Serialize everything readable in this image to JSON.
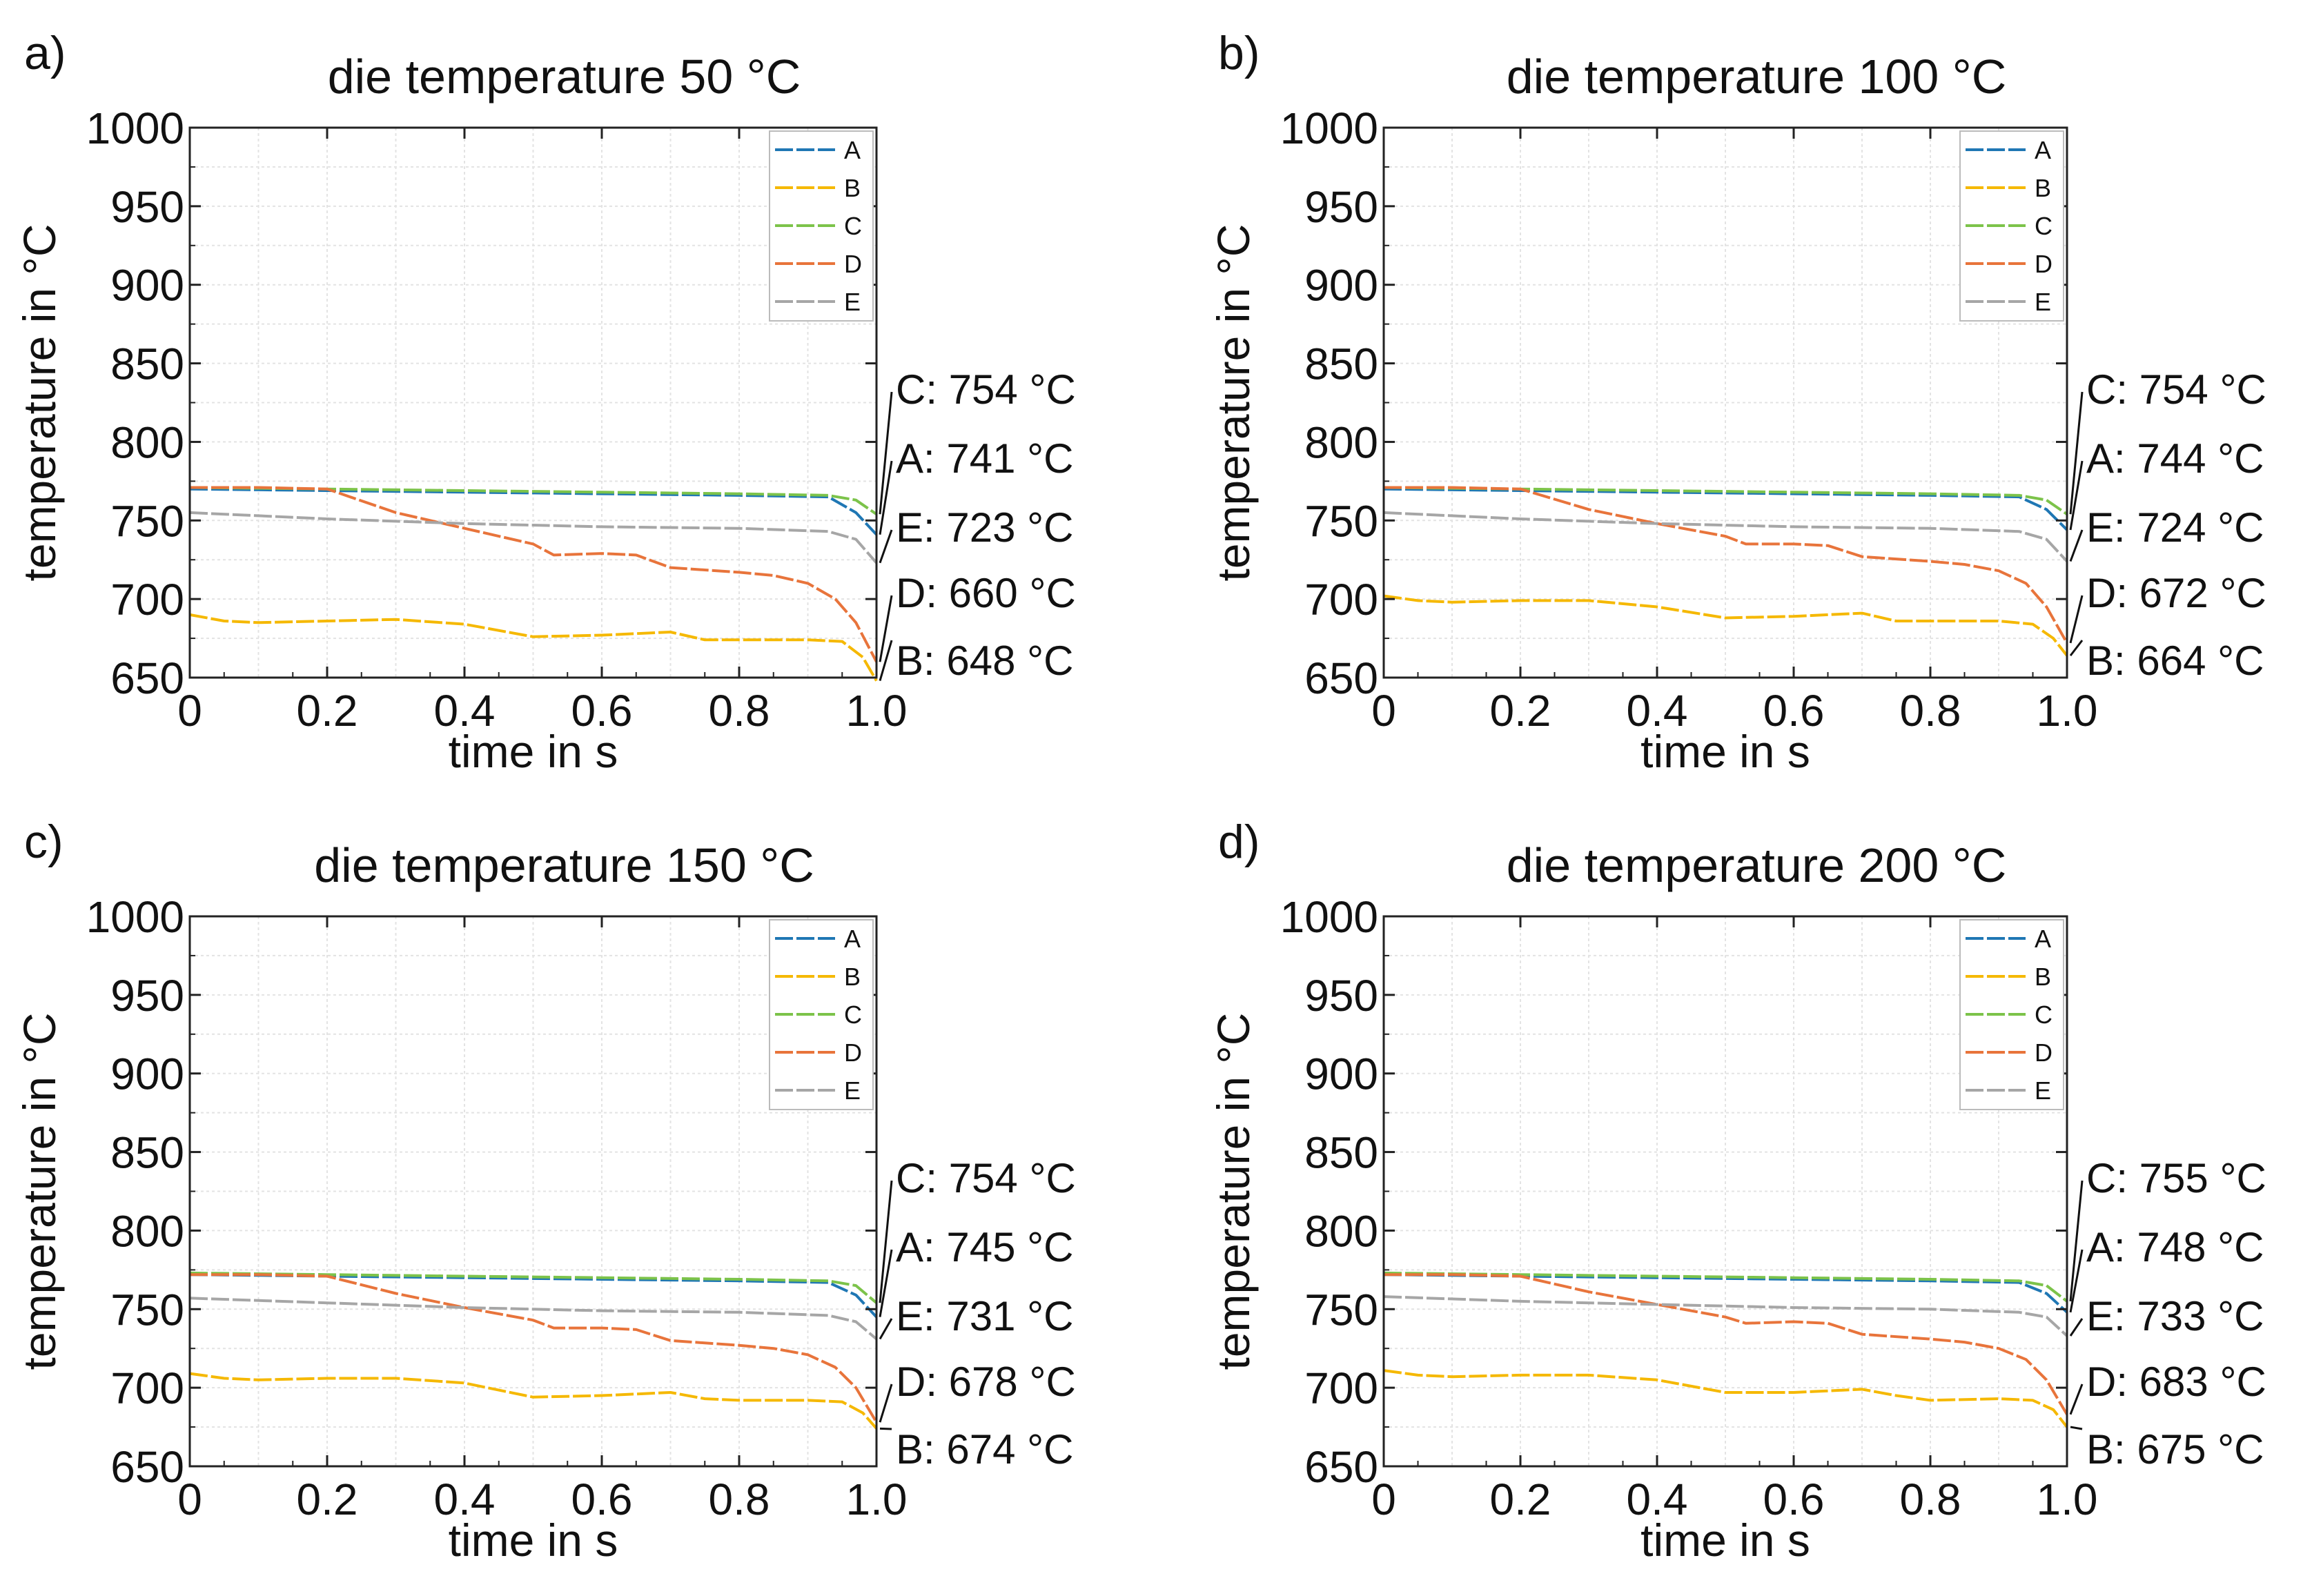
{
  "chart_data": [
    {
      "type": "line",
      "panel_label": "a)",
      "title": "die temperature 50 °C",
      "xlabel": "time in s",
      "ylabel": "temperature in °C",
      "xlim": [
        0,
        1.0
      ],
      "ylim": [
        650,
        1000
      ],
      "xticks": [
        0,
        0.2,
        0.4,
        0.6,
        0.8,
        1.0
      ],
      "xtick_labels": [
        "0",
        "0.2",
        "0.4",
        "0.6",
        "0.8",
        "1.0"
      ],
      "yticks": [
        650,
        700,
        750,
        800,
        850,
        900,
        950,
        1000
      ],
      "ytick_labels": [
        "650",
        "700",
        "750",
        "800",
        "850",
        "900",
        "950",
        "1000"
      ],
      "grid": true,
      "legend_position": "top-right",
      "series": [
        {
          "name": "A",
          "color": "#1f77b4",
          "x": [
            0,
            0.2,
            0.4,
            0.6,
            0.8,
            0.93,
            0.97,
            1.0
          ],
          "y": [
            770,
            769,
            768,
            767,
            766,
            765,
            755,
            741
          ]
        },
        {
          "name": "B",
          "color": "#f5b800",
          "x": [
            0,
            0.05,
            0.1,
            0.2,
            0.3,
            0.4,
            0.5,
            0.6,
            0.7,
            0.75,
            0.8,
            0.9,
            0.95,
            0.98,
            1.0
          ],
          "y": [
            690,
            686,
            685,
            686,
            687,
            684,
            676,
            677,
            679,
            674,
            674,
            674,
            673,
            663,
            648
          ]
        },
        {
          "name": "C",
          "color": "#7cc34a",
          "x": [
            0,
            0.2,
            0.4,
            0.6,
            0.8,
            0.93,
            0.97,
            1.0
          ],
          "y": [
            771,
            770,
            769,
            768,
            767,
            766,
            763,
            754
          ]
        },
        {
          "name": "D",
          "color": "#e8743b",
          "x": [
            0,
            0.1,
            0.2,
            0.3,
            0.4,
            0.5,
            0.53,
            0.6,
            0.65,
            0.7,
            0.8,
            0.85,
            0.9,
            0.94,
            0.97,
            1.0
          ],
          "y": [
            771,
            771,
            770,
            755,
            745,
            735,
            728,
            729,
            728,
            720,
            717,
            715,
            710,
            700,
            685,
            660
          ]
        },
        {
          "name": "E",
          "color": "#a6a6a6",
          "x": [
            0,
            0.2,
            0.4,
            0.6,
            0.8,
            0.93,
            0.97,
            1.0
          ],
          "y": [
            755,
            751,
            748,
            746,
            745,
            743,
            738,
            723
          ]
        }
      ],
      "annotations": [
        {
          "text": "C: 754 °C",
          "series": "C",
          "value": 754
        },
        {
          "text": "A: 741 °C",
          "series": "A",
          "value": 741
        },
        {
          "text": "E: 723 °C",
          "series": "E",
          "value": 723
        },
        {
          "text": "D: 660 °C",
          "series": "D",
          "value": 660
        },
        {
          "text": "B: 648 °C",
          "series": "B",
          "value": 648
        }
      ]
    },
    {
      "type": "line",
      "panel_label": "b)",
      "title": "die temperature 100 °C",
      "xlabel": "time in s",
      "ylabel": "temperature in °C",
      "xlim": [
        0,
        1.0
      ],
      "ylim": [
        650,
        1000
      ],
      "xticks": [
        0,
        0.2,
        0.4,
        0.6,
        0.8,
        1.0
      ],
      "xtick_labels": [
        "0",
        "0.2",
        "0.4",
        "0.6",
        "0.8",
        "1.0"
      ],
      "yticks": [
        650,
        700,
        750,
        800,
        850,
        900,
        950,
        1000
      ],
      "ytick_labels": [
        "650",
        "700",
        "750",
        "800",
        "850",
        "900",
        "950",
        "1000"
      ],
      "grid": true,
      "legend_position": "top-right",
      "series": [
        {
          "name": "A",
          "color": "#1f77b4",
          "x": [
            0,
            0.2,
            0.4,
            0.6,
            0.8,
            0.93,
            0.97,
            1.0
          ],
          "y": [
            770,
            769,
            768,
            767,
            766,
            765,
            757,
            744
          ]
        },
        {
          "name": "B",
          "color": "#f5b800",
          "x": [
            0,
            0.05,
            0.1,
            0.2,
            0.3,
            0.4,
            0.5,
            0.6,
            0.7,
            0.75,
            0.8,
            0.9,
            0.95,
            0.98,
            1.0
          ],
          "y": [
            702,
            699,
            698,
            699,
            699,
            695,
            688,
            689,
            691,
            686,
            686,
            686,
            684,
            675,
            664
          ]
        },
        {
          "name": "C",
          "color": "#7cc34a",
          "x": [
            0,
            0.2,
            0.4,
            0.6,
            0.8,
            0.93,
            0.97,
            1.0
          ],
          "y": [
            771,
            770,
            769,
            768,
            767,
            766,
            763,
            754
          ]
        },
        {
          "name": "D",
          "color": "#e8743b",
          "x": [
            0,
            0.1,
            0.2,
            0.3,
            0.4,
            0.5,
            0.53,
            0.6,
            0.65,
            0.7,
            0.8,
            0.85,
            0.9,
            0.94,
            0.97,
            1.0
          ],
          "y": [
            771,
            771,
            770,
            757,
            748,
            740,
            735,
            735,
            734,
            727,
            724,
            722,
            718,
            710,
            695,
            672
          ]
        },
        {
          "name": "E",
          "color": "#a6a6a6",
          "x": [
            0,
            0.2,
            0.4,
            0.6,
            0.8,
            0.93,
            0.97,
            1.0
          ],
          "y": [
            755,
            751,
            748,
            746,
            745,
            743,
            738,
            724
          ]
        }
      ],
      "annotations": [
        {
          "text": "C: 754 °C",
          "series": "C",
          "value": 754
        },
        {
          "text": "A: 744 °C",
          "series": "A",
          "value": 744
        },
        {
          "text": "E: 724 °C",
          "series": "E",
          "value": 724
        },
        {
          "text": "D: 672 °C",
          "series": "D",
          "value": 672
        },
        {
          "text": "B: 664 °C",
          "series": "B",
          "value": 664
        }
      ]
    },
    {
      "type": "line",
      "panel_label": "c)",
      "title": "die temperature 150 °C",
      "xlabel": "time in s",
      "ylabel": "temperature in °C",
      "xlim": [
        0,
        1.0
      ],
      "ylim": [
        650,
        1000
      ],
      "xticks": [
        0,
        0.2,
        0.4,
        0.6,
        0.8,
        1.0
      ],
      "xtick_labels": [
        "0",
        "0.2",
        "0.4",
        "0.6",
        "0.8",
        "1.0"
      ],
      "yticks": [
        650,
        700,
        750,
        800,
        850,
        900,
        950,
        1000
      ],
      "ytick_labels": [
        "650",
        "700",
        "750",
        "800",
        "850",
        "900",
        "950",
        "1000"
      ],
      "grid": true,
      "legend_position": "top-right",
      "series": [
        {
          "name": "A",
          "color": "#1f77b4",
          "x": [
            0,
            0.2,
            0.4,
            0.6,
            0.8,
            0.93,
            0.97,
            1.0
          ],
          "y": [
            772,
            771,
            770,
            769,
            768,
            767,
            759,
            745
          ]
        },
        {
          "name": "B",
          "color": "#f5b800",
          "x": [
            0,
            0.05,
            0.1,
            0.2,
            0.3,
            0.4,
            0.5,
            0.6,
            0.7,
            0.75,
            0.8,
            0.9,
            0.95,
            0.98,
            1.0
          ],
          "y": [
            709,
            706,
            705,
            706,
            706,
            703,
            694,
            695,
            697,
            693,
            692,
            692,
            691,
            684,
            674
          ]
        },
        {
          "name": "C",
          "color": "#7cc34a",
          "x": [
            0,
            0.2,
            0.4,
            0.6,
            0.8,
            0.93,
            0.97,
            1.0
          ],
          "y": [
            773,
            772,
            771,
            770,
            769,
            768,
            765,
            754
          ]
        },
        {
          "name": "D",
          "color": "#e8743b",
          "x": [
            0,
            0.1,
            0.2,
            0.3,
            0.4,
            0.5,
            0.53,
            0.6,
            0.65,
            0.7,
            0.8,
            0.85,
            0.9,
            0.94,
            0.97,
            1.0
          ],
          "y": [
            772,
            772,
            771,
            760,
            751,
            743,
            738,
            738,
            737,
            730,
            727,
            725,
            721,
            713,
            700,
            678
          ]
        },
        {
          "name": "E",
          "color": "#a6a6a6",
          "x": [
            0,
            0.2,
            0.4,
            0.6,
            0.8,
            0.93,
            0.97,
            1.0
          ],
          "y": [
            757,
            754,
            751,
            749,
            748,
            746,
            742,
            731
          ]
        }
      ],
      "annotations": [
        {
          "text": "C: 754 °C",
          "series": "C",
          "value": 754
        },
        {
          "text": "A: 745 °C",
          "series": "A",
          "value": 745
        },
        {
          "text": "E: 731 °C",
          "series": "E",
          "value": 731
        },
        {
          "text": "D: 678 °C",
          "series": "D",
          "value": 678
        },
        {
          "text": "B: 674 °C",
          "series": "B",
          "value": 674
        }
      ]
    },
    {
      "type": "line",
      "panel_label": "d)",
      "title": "die temperature 200 °C",
      "xlabel": "time in s",
      "ylabel": "temperature in °C",
      "xlim": [
        0,
        1.0
      ],
      "ylim": [
        650,
        1000
      ],
      "xticks": [
        0,
        0.2,
        0.4,
        0.6,
        0.8,
        1.0
      ],
      "xtick_labels": [
        "0",
        "0.2",
        "0.4",
        "0.6",
        "0.8",
        "1.0"
      ],
      "yticks": [
        650,
        700,
        750,
        800,
        850,
        900,
        950,
        1000
      ],
      "ytick_labels": [
        "650",
        "700",
        "750",
        "800",
        "850",
        "900",
        "950",
        "1000"
      ],
      "grid": true,
      "legend_position": "top-right",
      "series": [
        {
          "name": "A",
          "color": "#1f77b4",
          "x": [
            0,
            0.2,
            0.4,
            0.6,
            0.8,
            0.93,
            0.97,
            1.0
          ],
          "y": [
            772,
            771,
            770,
            769,
            768,
            767,
            760,
            748
          ]
        },
        {
          "name": "B",
          "color": "#f5b800",
          "x": [
            0,
            0.05,
            0.1,
            0.2,
            0.3,
            0.4,
            0.5,
            0.6,
            0.7,
            0.75,
            0.8,
            0.9,
            0.95,
            0.98,
            1.0
          ],
          "y": [
            711,
            708,
            707,
            708,
            708,
            705,
            697,
            697,
            699,
            695,
            692,
            693,
            692,
            686,
            675
          ]
        },
        {
          "name": "C",
          "color": "#7cc34a",
          "x": [
            0,
            0.2,
            0.4,
            0.6,
            0.8,
            0.93,
            0.97,
            1.0
          ],
          "y": [
            773,
            772,
            771,
            770,
            769,
            768,
            765,
            755
          ]
        },
        {
          "name": "D",
          "color": "#e8743b",
          "x": [
            0,
            0.1,
            0.2,
            0.3,
            0.4,
            0.5,
            0.53,
            0.6,
            0.65,
            0.7,
            0.8,
            0.85,
            0.9,
            0.94,
            0.97,
            1.0
          ],
          "y": [
            772,
            772,
            771,
            761,
            753,
            745,
            741,
            742,
            741,
            734,
            731,
            729,
            725,
            718,
            705,
            683
          ]
        },
        {
          "name": "E",
          "color": "#a6a6a6",
          "x": [
            0,
            0.2,
            0.4,
            0.6,
            0.8,
            0.93,
            0.97,
            1.0
          ],
          "y": [
            758,
            755,
            753,
            751,
            750,
            748,
            745,
            733
          ]
        }
      ],
      "annotations": [
        {
          "text": "C: 755 °C",
          "series": "C",
          "value": 755
        },
        {
          "text": "A: 748 °C",
          "series": "A",
          "value": 748
        },
        {
          "text": "E: 733 °C",
          "series": "E",
          "value": 733
        },
        {
          "text": "D: 683 °C",
          "series": "D",
          "value": 683
        },
        {
          "text": "B: 675 °C",
          "series": "B",
          "value": 675
        }
      ]
    }
  ]
}
